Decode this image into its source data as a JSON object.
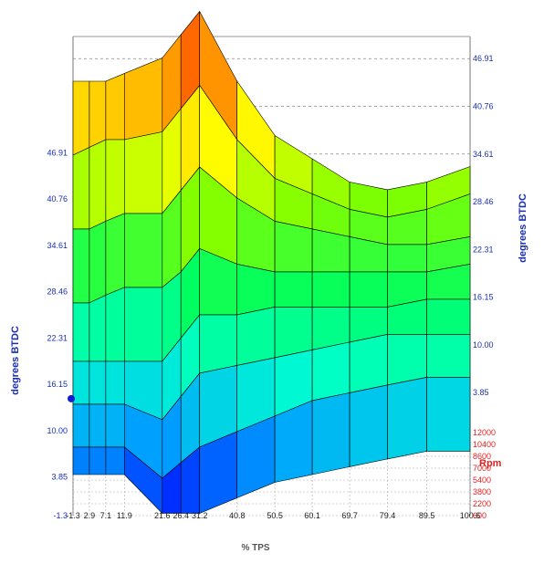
{
  "chart_data": {
    "type": "surface3d",
    "xlabel": "% TPS",
    "ylabel_left": "degrees BTDC",
    "ylabel_right": "degrees BTDC",
    "depth_label": "Rpm",
    "x_ticks": [
      "-1.3",
      "2.9",
      "7.1",
      "11.9",
      "21.6",
      "26.4",
      "31.2",
      "40.8",
      "50.5",
      "60.1",
      "69.7",
      "79.4",
      "89.5",
      "100.6"
    ],
    "y_ticks_left": [
      "-1.3",
      "3.85",
      "10.00",
      "16.15",
      "22.31",
      "28.46",
      "34.61",
      "40.76",
      "46.91"
    ],
    "y_ticks_right": [
      "3.85",
      "10.00",
      "16.15",
      "22.31",
      "28.46",
      "34.61",
      "40.76",
      "46.91"
    ],
    "rpm_ticks": [
      "600",
      "2200",
      "3800",
      "5400",
      "7000",
      "8600",
      "10400",
      "12000"
    ],
    "tps": [
      -1.3,
      2.9,
      7.1,
      11.9,
      21.6,
      26.4,
      31.2,
      40.8,
      50.5,
      60.1,
      69.7,
      79.4,
      89.5,
      100.6
    ],
    "rpm": [
      600,
      2200,
      3800,
      5400,
      7000,
      8600,
      10400,
      12000
    ],
    "advance_by_rpm": [
      [
        4,
        4,
        4,
        4,
        -1,
        -1,
        -1,
        1,
        3,
        4,
        5,
        6,
        7,
        7
      ],
      [
        6,
        6,
        6,
        6,
        2,
        4,
        6,
        8,
        10,
        12,
        13,
        14,
        15,
        15
      ],
      [
        10,
        10,
        10,
        10,
        8,
        11,
        14,
        15,
        16,
        17,
        18,
        19,
        19,
        19
      ],
      [
        14,
        14,
        14,
        14,
        14,
        17,
        20,
        20,
        21,
        21,
        21,
        21,
        22,
        22
      ],
      [
        20,
        20,
        21,
        22,
        22,
        24,
        27,
        25,
        24,
        24,
        24,
        24,
        24,
        25
      ],
      [
        28,
        28,
        29,
        30,
        30,
        33,
        36,
        32,
        29,
        28,
        27,
        26,
        26,
        27
      ],
      [
        36,
        37,
        38,
        38,
        39,
        42,
        45,
        38,
        33,
        31,
        29,
        28,
        29,
        31
      ],
      [
        44,
        44,
        44,
        45,
        47,
        50,
        53,
        44,
        37,
        34,
        31,
        30,
        31,
        33
      ]
    ],
    "colormap": [
      "#0000ff",
      "#00a0ff",
      "#00ffd0",
      "#00ff60",
      "#80ff00",
      "#ffff00",
      "#ff9000",
      "#ff0000"
    ],
    "zlim": [
      -1.3,
      53.06
    ],
    "grid": true
  }
}
